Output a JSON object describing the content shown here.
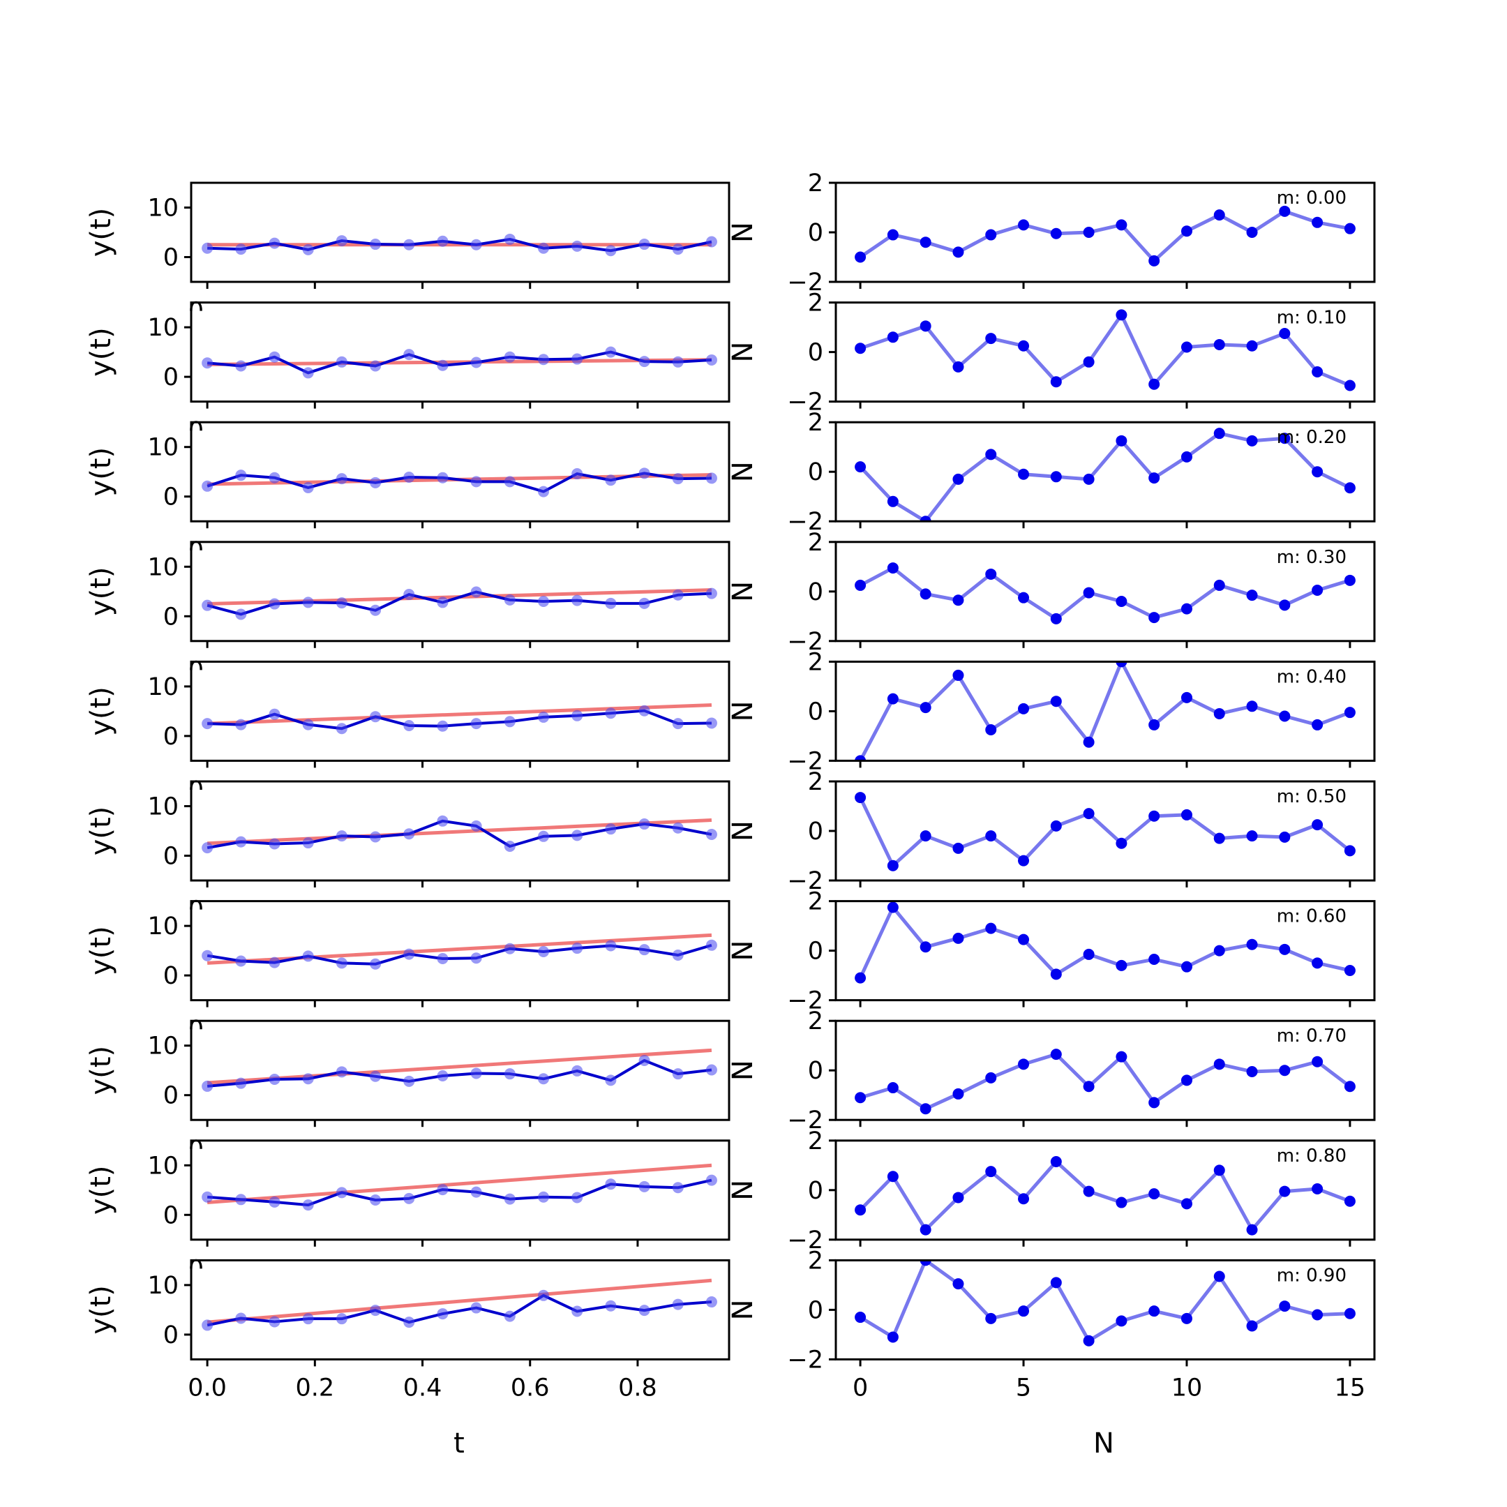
{
  "figure": {
    "left_xlabel": "t",
    "right_xlabel": "N",
    "left_ylabel": "y(t)",
    "right_ylabel": "N",
    "clipped_left_glyph": "0"
  },
  "chart_data": [
    {
      "type": "line",
      "panel": "left",
      "xlabel": "t",
      "ylabel": "y(t)",
      "xlim": [
        -0.03,
        0.97
      ],
      "ylim": [
        -5,
        15
      ],
      "xticks": [
        0.0,
        0.2,
        0.4,
        0.6,
        0.8
      ],
      "xtick_labels": [
        "0.0",
        "0.2",
        "0.4",
        "0.6",
        "0.8"
      ],
      "yticks": [
        0,
        10
      ],
      "ytick_labels": [
        "0",
        "10"
      ],
      "x": [
        0.0,
        0.0625,
        0.125,
        0.1875,
        0.25,
        0.3125,
        0.375,
        0.4375,
        0.5,
        0.5625,
        0.625,
        0.6875,
        0.75,
        0.8125,
        0.875,
        0.9375
      ],
      "colors": {
        "observed": "#0000cc",
        "points": "#4444ee",
        "fit": "#f07878"
      },
      "rows": [
        {
          "m": 0.0,
          "fit": [
            2.5,
            2.5
          ],
          "y": [
            1.8,
            1.6,
            2.8,
            1.5,
            3.3,
            2.6,
            2.5,
            3.2,
            2.5,
            3.6,
            1.8,
            2.2,
            1.3,
            2.6,
            1.6,
            3.1
          ]
        },
        {
          "m": 0.1,
          "fit": [
            2.5,
            3.44
          ],
          "y": [
            2.8,
            2.2,
            4.0,
            0.8,
            3.0,
            2.2,
            4.5,
            2.3,
            2.9,
            4.0,
            3.5,
            3.6,
            5.0,
            3.1,
            3.0,
            3.4
          ]
        },
        {
          "m": 0.2,
          "fit": [
            2.5,
            4.38
          ],
          "y": [
            2.1,
            4.3,
            3.8,
            1.8,
            3.6,
            2.8,
            3.9,
            3.8,
            3.0,
            3.0,
            1.0,
            4.6,
            3.3,
            4.7,
            3.6,
            3.7
          ]
        },
        {
          "m": 0.3,
          "fit": [
            2.5,
            5.31
          ],
          "y": [
            2.2,
            0.4,
            2.5,
            2.8,
            2.7,
            1.2,
            4.4,
            2.8,
            4.9,
            3.3,
            3.0,
            3.2,
            2.6,
            2.6,
            4.3,
            4.6
          ]
        },
        {
          "m": 0.4,
          "fit": [
            2.5,
            6.25
          ],
          "y": [
            2.5,
            2.3,
            4.4,
            2.3,
            1.5,
            3.9,
            2.1,
            2.0,
            2.5,
            2.9,
            3.8,
            4.1,
            4.6,
            5.1,
            2.5,
            2.6
          ]
        },
        {
          "m": 0.5,
          "fit": [
            2.5,
            7.19
          ],
          "y": [
            1.6,
            2.8,
            2.4,
            2.6,
            4.0,
            3.8,
            4.4,
            7.0,
            6.0,
            1.9,
            3.9,
            4.1,
            5.4,
            6.4,
            5.6,
            4.3
          ]
        },
        {
          "m": 0.6,
          "fit": [
            2.5,
            8.13
          ],
          "y": [
            4.0,
            2.9,
            2.6,
            3.9,
            2.5,
            2.3,
            4.3,
            3.4,
            3.5,
            5.4,
            4.8,
            5.5,
            6.0,
            5.2,
            4.1,
            6.1
          ]
        },
        {
          "m": 0.7,
          "fit": [
            2.5,
            9.06
          ],
          "y": [
            1.8,
            2.4,
            3.2,
            3.3,
            4.7,
            3.8,
            2.8,
            3.9,
            4.4,
            4.3,
            3.3,
            4.9,
            3.0,
            7.0,
            4.3,
            5.1
          ]
        },
        {
          "m": 0.8,
          "fit": [
            2.5,
            10.0
          ],
          "y": [
            3.6,
            3.1,
            2.6,
            2.0,
            4.5,
            3.0,
            3.3,
            5.1,
            4.6,
            3.2,
            3.6,
            3.5,
            6.2,
            5.7,
            5.5,
            7.0
          ]
        },
        {
          "m": 0.9,
          "fit": [
            2.5,
            10.94
          ],
          "y": [
            1.9,
            3.3,
            2.6,
            3.2,
            3.2,
            4.9,
            2.5,
            4.2,
            5.4,
            3.7,
            7.9,
            4.7,
            5.8,
            4.9,
            6.1,
            6.6
          ]
        }
      ]
    },
    {
      "type": "scatter",
      "panel": "right",
      "xlabel": "N",
      "ylabel": "N",
      "xlim": [
        -0.75,
        15.75
      ],
      "ylim": [
        -2,
        2
      ],
      "xticks": [
        0,
        5,
        10,
        15
      ],
      "xtick_labels": [
        "0",
        "5",
        "10",
        "15"
      ],
      "yticks": [
        -2,
        0,
        2
      ],
      "ytick_labels": [
        "−2",
        "0",
        "2"
      ],
      "x": [
        0,
        1,
        2,
        3,
        4,
        5,
        6,
        7,
        8,
        9,
        10,
        11,
        12,
        13,
        14,
        15
      ],
      "colors": {
        "line": "#7777ee",
        "points": "#0000ee"
      },
      "rows": [
        {
          "annotation": "m: 0.00",
          "values": [
            -1.0,
            -0.1,
            -0.4,
            -0.8,
            -0.1,
            0.3,
            -0.05,
            0.0,
            0.3,
            -1.15,
            0.05,
            0.7,
            0.0,
            0.85,
            0.4,
            0.15
          ]
        },
        {
          "annotation": "m: 0.10",
          "values": [
            0.15,
            0.6,
            1.05,
            -0.6,
            0.55,
            0.25,
            -1.2,
            -0.4,
            1.5,
            -1.3,
            0.2,
            0.3,
            0.25,
            0.75,
            -0.8,
            -1.35
          ]
        },
        {
          "annotation": "m: 0.20",
          "values": [
            0.2,
            -1.2,
            -2.0,
            -0.3,
            0.7,
            -0.1,
            -0.2,
            -0.3,
            1.25,
            -0.25,
            0.6,
            1.55,
            1.25,
            1.35,
            0.0,
            -0.65
          ]
        },
        {
          "annotation": "m: 0.30",
          "values": [
            0.25,
            0.95,
            -0.1,
            -0.35,
            0.7,
            -0.25,
            -1.1,
            -0.05,
            -0.4,
            -1.05,
            -0.7,
            0.25,
            -0.15,
            -0.55,
            0.05,
            0.45
          ]
        },
        {
          "annotation": "m: 0.40",
          "values": [
            -2.0,
            0.5,
            0.15,
            1.45,
            -0.75,
            0.1,
            0.4,
            -1.25,
            2.0,
            -0.55,
            0.55,
            -0.1,
            0.2,
            -0.2,
            -0.55,
            -0.05
          ]
        },
        {
          "annotation": "m: 0.50",
          "values": [
            1.35,
            -1.4,
            -0.2,
            -0.7,
            -0.2,
            -1.2,
            0.2,
            0.7,
            -0.5,
            0.6,
            0.65,
            -0.3,
            -0.2,
            -0.25,
            0.25,
            -0.8
          ]
        },
        {
          "annotation": "m: 0.60",
          "values": [
            -1.1,
            1.75,
            0.15,
            0.5,
            0.9,
            0.45,
            -0.95,
            -0.15,
            -0.6,
            -0.35,
            -0.65,
            0.0,
            0.25,
            0.05,
            -0.5,
            -0.8
          ]
        },
        {
          "annotation": "m: 0.70",
          "values": [
            -1.1,
            -0.7,
            -1.55,
            -0.95,
            -0.3,
            0.25,
            0.65,
            -0.65,
            0.55,
            -1.3,
            -0.4,
            0.25,
            -0.05,
            0.0,
            0.35,
            -0.65
          ]
        },
        {
          "annotation": "m: 0.80",
          "values": [
            -0.8,
            0.55,
            -1.6,
            -0.3,
            0.75,
            -0.35,
            1.15,
            -0.05,
            -0.5,
            -0.15,
            -0.55,
            0.8,
            -1.6,
            -0.05,
            0.05,
            -0.45
          ]
        },
        {
          "annotation": "m: 0.90",
          "values": [
            -0.3,
            -1.1,
            2.0,
            1.05,
            -0.35,
            -0.05,
            1.1,
            -1.25,
            -0.45,
            -0.05,
            -0.35,
            1.35,
            -0.65,
            0.15,
            -0.2,
            -0.15
          ]
        }
      ]
    }
  ]
}
